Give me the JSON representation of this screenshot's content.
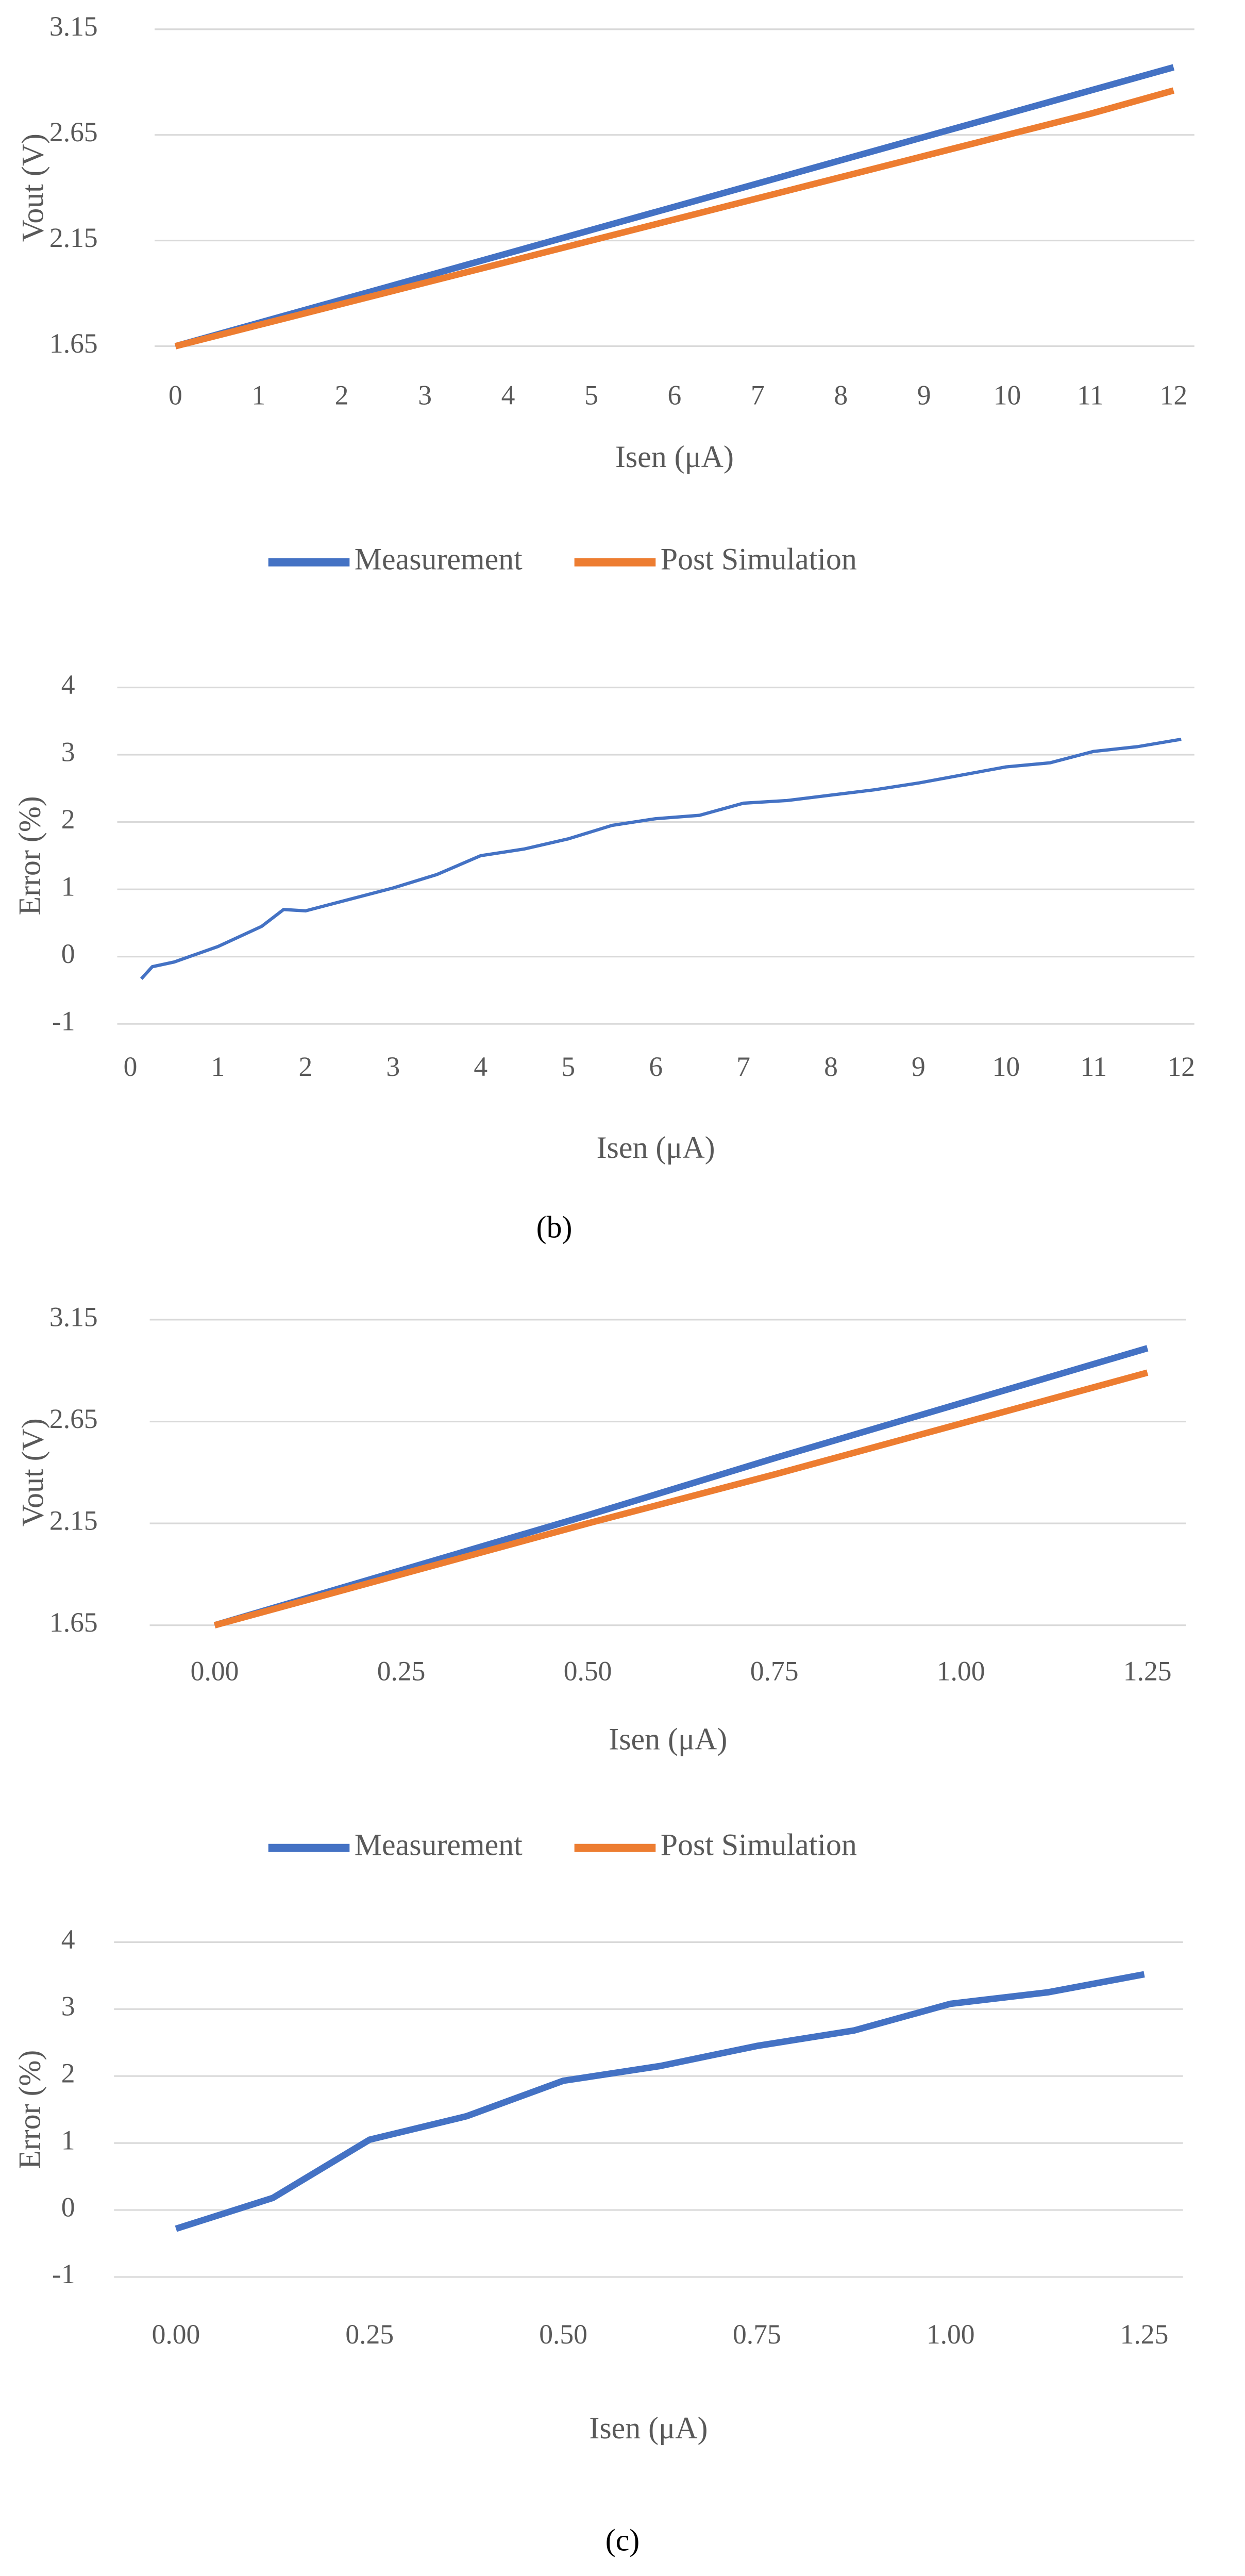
{
  "chart_data": [
    {
      "type": "line",
      "ylabel": "Vout (V)",
      "xlabel": "Isen (μA)",
      "x": [
        0,
        1,
        2,
        3,
        4,
        5,
        6,
        7,
        8,
        9,
        10,
        11,
        12
      ],
      "series": [
        {
          "name": "Measurement",
          "color": "#4472c4",
          "values": [
            1.65,
            1.76,
            1.87,
            1.98,
            2.09,
            2.2,
            2.31,
            2.42,
            2.53,
            2.64,
            2.75,
            2.86,
            2.97
          ]
        },
        {
          "name": "Post Simulation",
          "color": "#ed7d31",
          "values": [
            1.65,
            1.75,
            1.85,
            1.95,
            2.05,
            2.15,
            2.25,
            2.35,
            2.45,
            2.55,
            2.65,
            2.75,
            2.86
          ]
        }
      ],
      "xlim": [
        -0.25,
        12.25
      ],
      "xticks": [
        0,
        1,
        2,
        3,
        4,
        5,
        6,
        7,
        8,
        9,
        10,
        11,
        12
      ],
      "ylim": [
        1.65,
        3.15
      ],
      "yticks": [
        1.65,
        2.15,
        2.65,
        3.15
      ],
      "grid": true,
      "legend": "bottom"
    },
    {
      "type": "line",
      "ylabel": "Error (%)",
      "xlabel": "Isen (μA)",
      "x": [
        0.125,
        0.25,
        0.5,
        1,
        1.5,
        1.75,
        2,
        2.5,
        3,
        3.5,
        4,
        4.5,
        5,
        5.5,
        6,
        6.5,
        7,
        7.5,
        8,
        8.5,
        9,
        9.5,
        10,
        10.5,
        11,
        11.5,
        12
      ],
      "series": [
        {
          "name": "Measurement",
          "color": "#4472c4",
          "values": [
            -0.33,
            -0.15,
            -0.08,
            0.15,
            0.45,
            0.7,
            0.68,
            0.85,
            1.02,
            1.22,
            1.5,
            1.6,
            1.75,
            1.95,
            2.05,
            2.1,
            2.28,
            2.32,
            2.4,
            2.48,
            2.58,
            2.7,
            2.82,
            2.88,
            3.05,
            3.12,
            3.23
          ]
        }
      ],
      "xlim": [
        -0.15,
        12.15
      ],
      "xticks": [
        0,
        1,
        2,
        3,
        4,
        5,
        6,
        7,
        8,
        9,
        10,
        11,
        12
      ],
      "ylim": [
        -1,
        4
      ],
      "yticks": [
        -1,
        0,
        1,
        2,
        3,
        4
      ],
      "grid": true
    },
    {
      "type": "line",
      "ylabel": "Vout (V)",
      "xlabel": "Isen (μA)",
      "x": [
        0,
        0.25,
        0.5,
        0.75,
        1,
        1.25
      ],
      "series": [
        {
          "name": "Measurement",
          "color": "#4472c4",
          "values": [
            1.65,
            1.92,
            2.19,
            2.47,
            2.74,
            3.01
          ]
        },
        {
          "name": "Post Simulation",
          "color": "#ed7d31",
          "values": [
            1.65,
            1.9,
            2.15,
            2.39,
            2.64,
            2.89
          ]
        }
      ],
      "xlim": [
        -0.087,
        1.302
      ],
      "xticks": [
        {
          "value": 0,
          "label": "0.00"
        },
        {
          "value": 0.25,
          "label": "0.25"
        },
        {
          "value": 0.5,
          "label": "0.50"
        },
        {
          "value": 0.75,
          "label": "0.75"
        },
        {
          "value": 1,
          "label": "1.00"
        },
        {
          "value": 1.25,
          "label": "1.25"
        }
      ],
      "ylim": [
        1.65,
        3.15
      ],
      "yticks": [
        1.65,
        2.15,
        2.65,
        3.15
      ],
      "grid": true,
      "legend": "bottom"
    },
    {
      "type": "line",
      "ylabel": "Error (%)",
      "xlabel": "Isen (μA)",
      "x": [
        0,
        0.125,
        0.25,
        0.375,
        0.5,
        0.625,
        0.75,
        0.875,
        1,
        1.125,
        1.25
      ],
      "series": [
        {
          "name": "Measurement",
          "color": "#4472c4",
          "values": [
            -0.28,
            0.18,
            1.05,
            1.4,
            1.93,
            2.15,
            2.45,
            2.68,
            3.08,
            3.25,
            3.52
          ]
        }
      ],
      "xlim": [
        -0.08,
        1.3
      ],
      "xticks": [
        {
          "value": 0,
          "label": "0.00"
        },
        {
          "value": 0.25,
          "label": "0.25"
        },
        {
          "value": 0.5,
          "label": "0.50"
        },
        {
          "value": 0.75,
          "label": "0.75"
        },
        {
          "value": 1,
          "label": "1.00"
        },
        {
          "value": 1.25,
          "label": "1.25"
        }
      ],
      "ylim": [
        -1,
        4
      ],
      "yticks": [
        -1,
        0,
        1,
        2,
        3,
        4
      ],
      "grid": true
    }
  ],
  "captions": [
    "(b)",
    "(c)"
  ]
}
